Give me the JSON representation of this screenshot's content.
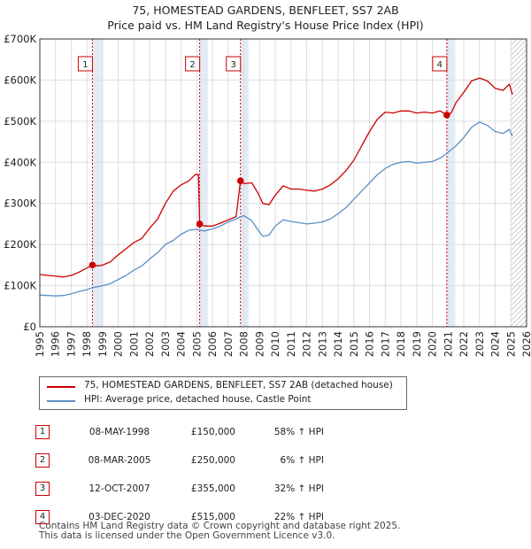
{
  "header": {
    "title_line1": "75, HOMESTEAD GARDENS, BENFLEET, SS7 2AB",
    "title_line2": "Price paid vs. HM Land Registry's House Price Index (HPI)"
  },
  "chart_data": {
    "type": "line",
    "title": "75, HOMESTEAD GARDENS, BENFLEET, SS7 2AB — Price paid vs. HM Land Registry's House Price Index (HPI)",
    "xlim": [
      1995,
      2026
    ],
    "ylim": [
      0,
      700000
    ],
    "x_ticks": [
      "1995",
      "1996",
      "1997",
      "1998",
      "1999",
      "2000",
      "2001",
      "2002",
      "2003",
      "2004",
      "2005",
      "2006",
      "2007",
      "2008",
      "2009",
      "2010",
      "2011",
      "2012",
      "2013",
      "2014",
      "2015",
      "2016",
      "2017",
      "2018",
      "2019",
      "2020",
      "2021",
      "2022",
      "2023",
      "2024",
      "2025",
      "2026"
    ],
    "y_ticks": [
      {
        "value": 0,
        "label": "£0"
      },
      {
        "value": 100000,
        "label": "£100K"
      },
      {
        "value": 200000,
        "label": "£200K"
      },
      {
        "value": 300000,
        "label": "£300K"
      },
      {
        "value": 400000,
        "label": "£400K"
      },
      {
        "value": 500000,
        "label": "£500K"
      },
      {
        "value": 600000,
        "label": "£600K"
      },
      {
        "value": 700000,
        "label": "£700K"
      }
    ],
    "shaded_ranges": [
      {
        "from": 1998.35,
        "to": 1999.0
      },
      {
        "from": 2005.18,
        "to": 2005.7
      },
      {
        "from": 2007.78,
        "to": 2008.3
      },
      {
        "from": 2020.92,
        "to": 2021.45
      }
    ],
    "hatched_range": {
      "from": 2025.0,
      "to": 2026.0
    },
    "series": [
      {
        "name": "75, HOMESTEAD GARDENS, BENFLEET, SS7 2AB (detached house)",
        "color": "#cc0000",
        "points": [
          [
            1995.0,
            127000
          ],
          [
            1995.5,
            125000
          ],
          [
            1996.0,
            123000
          ],
          [
            1996.5,
            121000
          ],
          [
            1997.0,
            125000
          ],
          [
            1997.5,
            133000
          ],
          [
            1998.0,
            143000
          ],
          [
            1998.35,
            150000
          ],
          [
            1998.7,
            148000
          ],
          [
            1999.0,
            150000
          ],
          [
            1999.5,
            158000
          ],
          [
            2000.0,
            175000
          ],
          [
            2000.5,
            190000
          ],
          [
            2001.0,
            205000
          ],
          [
            2001.5,
            215000
          ],
          [
            2002.0,
            240000
          ],
          [
            2002.5,
            262000
          ],
          [
            2003.0,
            300000
          ],
          [
            2003.5,
            330000
          ],
          [
            2004.0,
            345000
          ],
          [
            2004.5,
            355000
          ],
          [
            2004.9,
            370000
          ],
          [
            2005.1,
            370000
          ],
          [
            2005.18,
            250000
          ],
          [
            2005.5,
            245000
          ],
          [
            2006.0,
            245000
          ],
          [
            2006.5,
            252000
          ],
          [
            2007.0,
            260000
          ],
          [
            2007.5,
            268000
          ],
          [
            2007.78,
            355000
          ],
          [
            2008.0,
            348000
          ],
          [
            2008.5,
            350000
          ],
          [
            2008.9,
            325000
          ],
          [
            2009.2,
            300000
          ],
          [
            2009.6,
            297000
          ],
          [
            2010.0,
            320000
          ],
          [
            2010.5,
            343000
          ],
          [
            2011.0,
            335000
          ],
          [
            2011.5,
            335000
          ],
          [
            2012.0,
            332000
          ],
          [
            2012.5,
            330000
          ],
          [
            2013.0,
            335000
          ],
          [
            2013.5,
            345000
          ],
          [
            2014.0,
            360000
          ],
          [
            2014.5,
            380000
          ],
          [
            2015.0,
            405000
          ],
          [
            2015.5,
            440000
          ],
          [
            2016.0,
            475000
          ],
          [
            2016.5,
            505000
          ],
          [
            2017.0,
            522000
          ],
          [
            2017.5,
            520000
          ],
          [
            2018.0,
            525000
          ],
          [
            2018.5,
            525000
          ],
          [
            2019.0,
            520000
          ],
          [
            2019.5,
            522000
          ],
          [
            2020.0,
            520000
          ],
          [
            2020.5,
            525000
          ],
          [
            2020.92,
            515000
          ],
          [
            2021.2,
            520000
          ],
          [
            2021.5,
            545000
          ],
          [
            2022.0,
            570000
          ],
          [
            2022.5,
            598000
          ],
          [
            2023.0,
            605000
          ],
          [
            2023.5,
            598000
          ],
          [
            2024.0,
            580000
          ],
          [
            2024.5,
            575000
          ],
          [
            2024.9,
            590000
          ],
          [
            2025.1,
            565000
          ]
        ]
      },
      {
        "name": "HPI: Average price, detached house, Castle Point",
        "color": "#5b8ec6",
        "points": [
          [
            1995.0,
            77000
          ],
          [
            1995.5,
            76000
          ],
          [
            1996.0,
            75000
          ],
          [
            1996.5,
            76000
          ],
          [
            1997.0,
            80000
          ],
          [
            1997.5,
            86000
          ],
          [
            1998.0,
            90000
          ],
          [
            1998.35,
            95000
          ],
          [
            1999.0,
            100000
          ],
          [
            1999.5,
            105000
          ],
          [
            2000.0,
            115000
          ],
          [
            2000.5,
            125000
          ],
          [
            2001.0,
            138000
          ],
          [
            2001.5,
            148000
          ],
          [
            2002.0,
            165000
          ],
          [
            2002.5,
            180000
          ],
          [
            2003.0,
            200000
          ],
          [
            2003.5,
            210000
          ],
          [
            2004.0,
            225000
          ],
          [
            2004.5,
            235000
          ],
          [
            2005.0,
            237000
          ],
          [
            2005.18,
            235000
          ],
          [
            2005.5,
            233000
          ],
          [
            2006.0,
            238000
          ],
          [
            2006.5,
            245000
          ],
          [
            2007.0,
            255000
          ],
          [
            2007.5,
            262000
          ],
          [
            2007.78,
            268000
          ],
          [
            2008.0,
            270000
          ],
          [
            2008.5,
            258000
          ],
          [
            2008.9,
            235000
          ],
          [
            2009.2,
            220000
          ],
          [
            2009.6,
            223000
          ],
          [
            2010.0,
            245000
          ],
          [
            2010.5,
            260000
          ],
          [
            2011.0,
            256000
          ],
          [
            2011.5,
            253000
          ],
          [
            2012.0,
            250000
          ],
          [
            2012.5,
            252000
          ],
          [
            2013.0,
            255000
          ],
          [
            2013.5,
            262000
          ],
          [
            2014.0,
            275000
          ],
          [
            2014.5,
            290000
          ],
          [
            2015.0,
            310000
          ],
          [
            2015.5,
            330000
          ],
          [
            2016.0,
            350000
          ],
          [
            2016.5,
            370000
          ],
          [
            2017.0,
            385000
          ],
          [
            2017.5,
            395000
          ],
          [
            2018.0,
            400000
          ],
          [
            2018.5,
            402000
          ],
          [
            2019.0,
            398000
          ],
          [
            2019.5,
            400000
          ],
          [
            2020.0,
            402000
          ],
          [
            2020.5,
            410000
          ],
          [
            2020.92,
            422000
          ],
          [
            2021.5,
            440000
          ],
          [
            2022.0,
            460000
          ],
          [
            2022.5,
            485000
          ],
          [
            2023.0,
            498000
          ],
          [
            2023.5,
            490000
          ],
          [
            2024.0,
            475000
          ],
          [
            2024.5,
            470000
          ],
          [
            2024.9,
            480000
          ],
          [
            2025.1,
            463000
          ]
        ]
      }
    ],
    "transactions": [
      {
        "label": "1",
        "x": 1998.35,
        "price": 150000
      },
      {
        "label": "2",
        "x": 2005.18,
        "price": 250000
      },
      {
        "label": "3",
        "x": 2007.78,
        "price": 355000
      },
      {
        "label": "4",
        "x": 2020.92,
        "price": 515000
      }
    ]
  },
  "legend": {
    "property_label": "75, HOMESTEAD GARDENS, BENFLEET, SS7 2AB (detached house)",
    "hpi_label": "HPI: Average price, detached house, Castle Point"
  },
  "transactions_table": [
    {
      "num": "1",
      "date": "08-MAY-1998",
      "price": "£150,000",
      "hpi": "58% ↑ HPI"
    },
    {
      "num": "2",
      "date": "08-MAR-2005",
      "price": "£250,000",
      "hpi": "6% ↑ HPI"
    },
    {
      "num": "3",
      "date": "12-OCT-2007",
      "price": "£355,000",
      "hpi": "32% ↑ HPI"
    },
    {
      "num": "4",
      "date": "03-DEC-2020",
      "price": "£515,000",
      "hpi": "22% ↑ HPI"
    }
  ],
  "footer": {
    "line1": "Contains HM Land Registry data © Crown copyright and database right 2025.",
    "line2": "This data is licensed under the Open Government Licence v3.0."
  }
}
